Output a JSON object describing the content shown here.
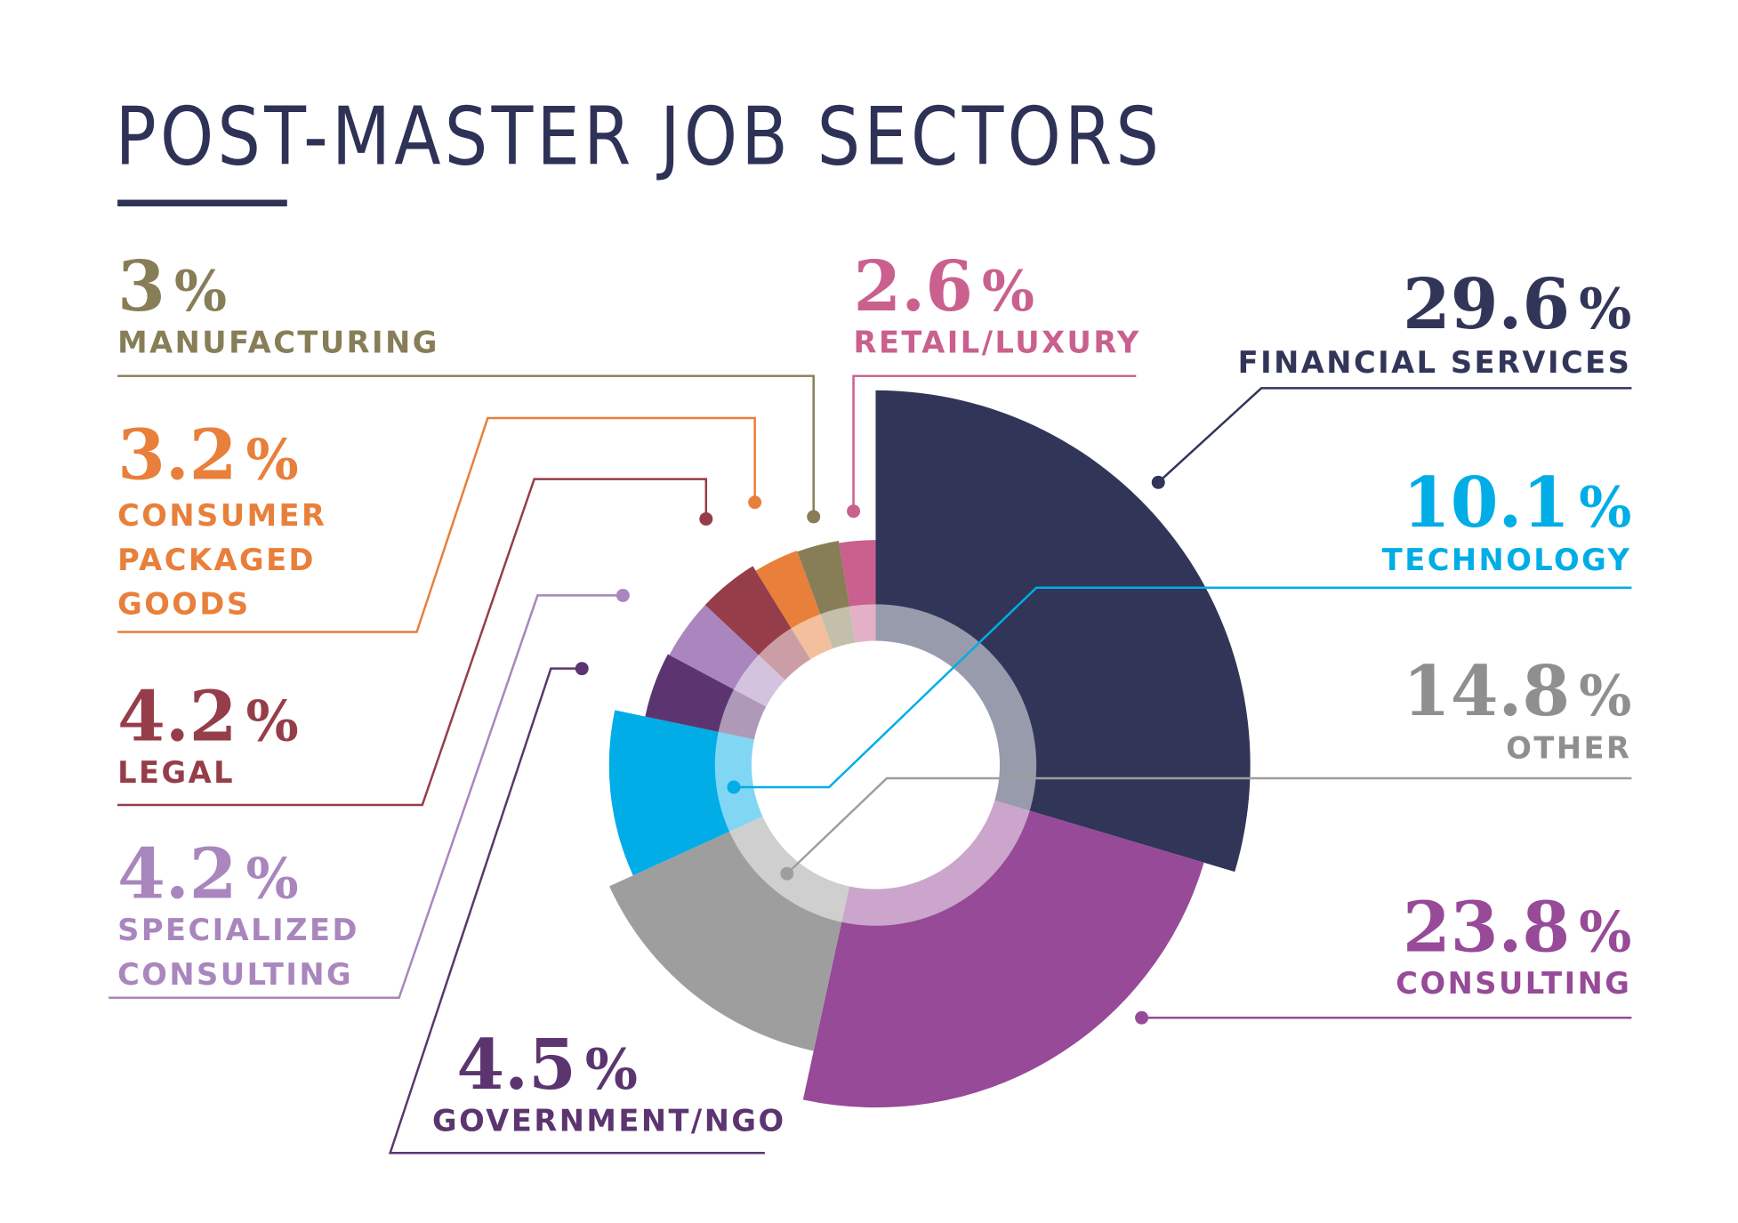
{
  "chart_data": {
    "type": "rose",
    "title": "POST-MASTER JOB SECTORS",
    "unit": "%",
    "categories": [
      "FINANCIAL SERVICES",
      "CONSULTING",
      "OTHER",
      "TECHNOLOGY",
      "GOVERNMENT/NGO",
      "SPECIALIZED CONSULTING",
      "LEGAL",
      "CONSUMER PACKAGED GOODS",
      "MANUFACTURING",
      "RETAIL/LUXURY"
    ],
    "values": [
      29.6,
      23.8,
      14.8,
      10.1,
      4.5,
      4.2,
      4.2,
      3.2,
      3,
      2.6
    ],
    "colors": [
      "#313659",
      "#964a97",
      "#9e9e9e",
      "#00ade6",
      "#5c3570",
      "#a986bd",
      "#963d4a",
      "#e87f3a",
      "#877e57",
      "#c9608e"
    ]
  }
}
